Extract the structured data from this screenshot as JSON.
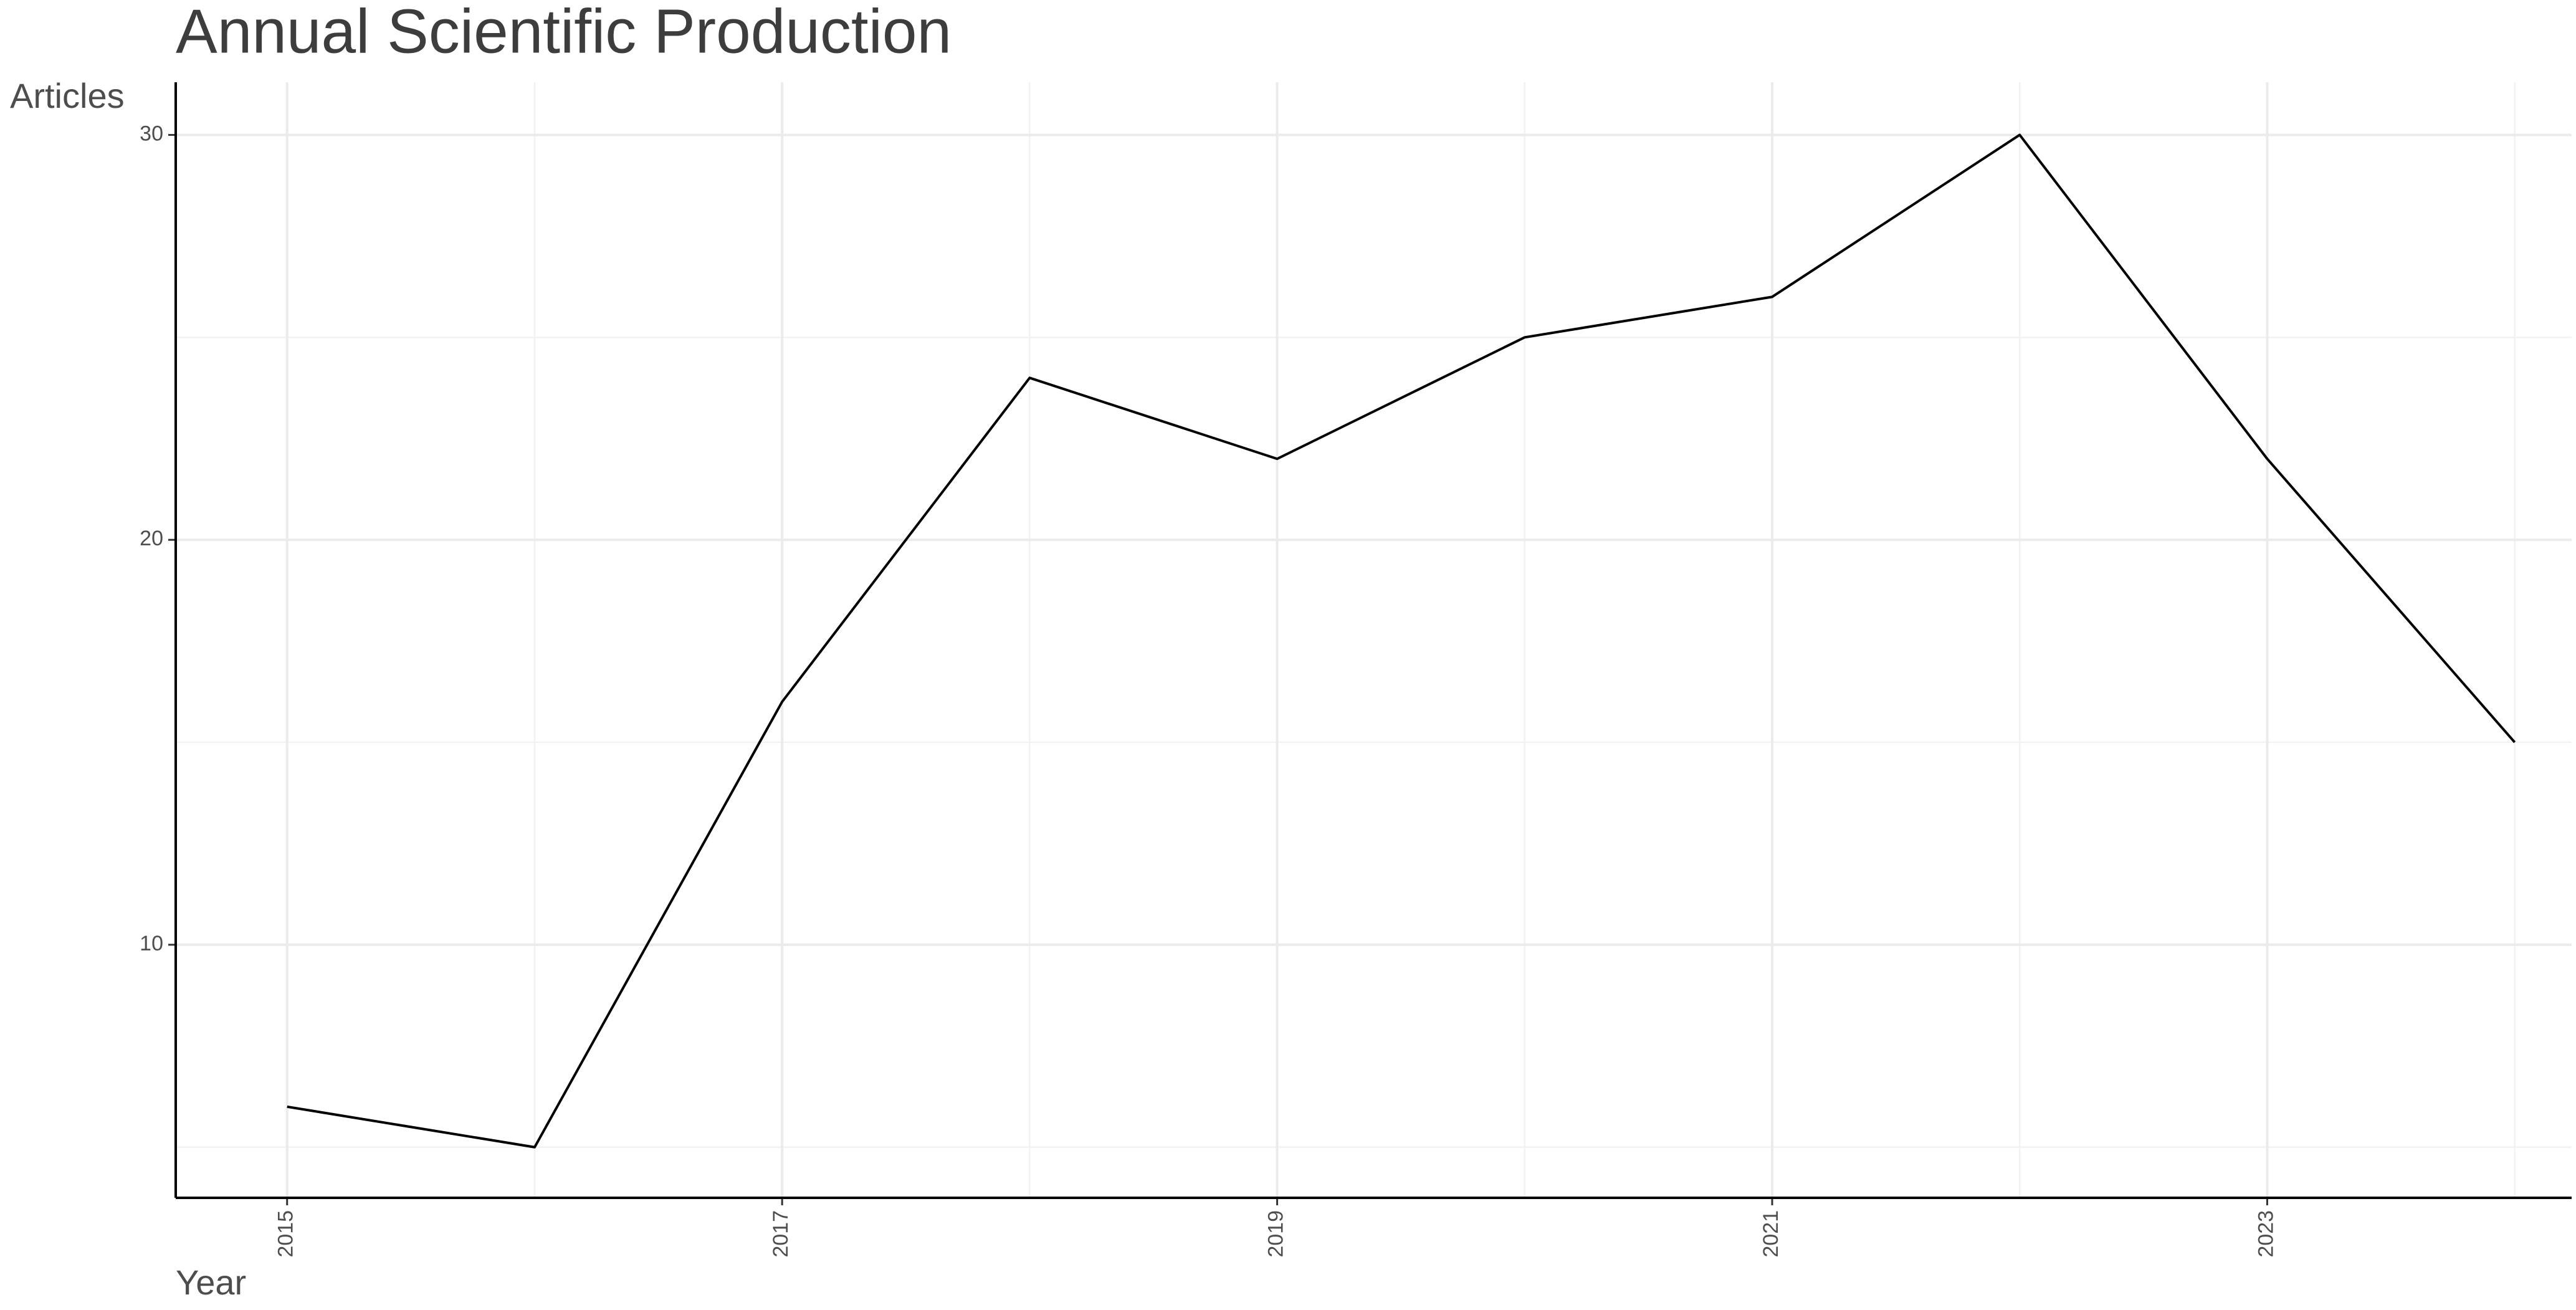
{
  "chart_data": {
    "type": "line",
    "title": "Annual Scientific Production",
    "y_label": "Articles",
    "x_label": "Year",
    "x": [
      2015,
      2016,
      2017,
      2018,
      2019,
      2020,
      2021,
      2022,
      2023,
      2024
    ],
    "values": [
      6,
      5,
      16,
      24,
      22,
      25,
      26,
      30,
      22,
      15
    ],
    "color": "#000000",
    "xlim": [
      2014.55,
      2024.23
    ],
    "ylim": [
      3.75,
      31.3
    ],
    "xticks": [
      2015,
      2017,
      2019,
      2021,
      2023
    ],
    "yticks": [
      10,
      20,
      30
    ],
    "minor_xticks": [
      2016,
      2018,
      2020,
      2022,
      2024
    ],
    "minor_yticks": [
      5,
      15,
      25
    ],
    "grid": true
  }
}
